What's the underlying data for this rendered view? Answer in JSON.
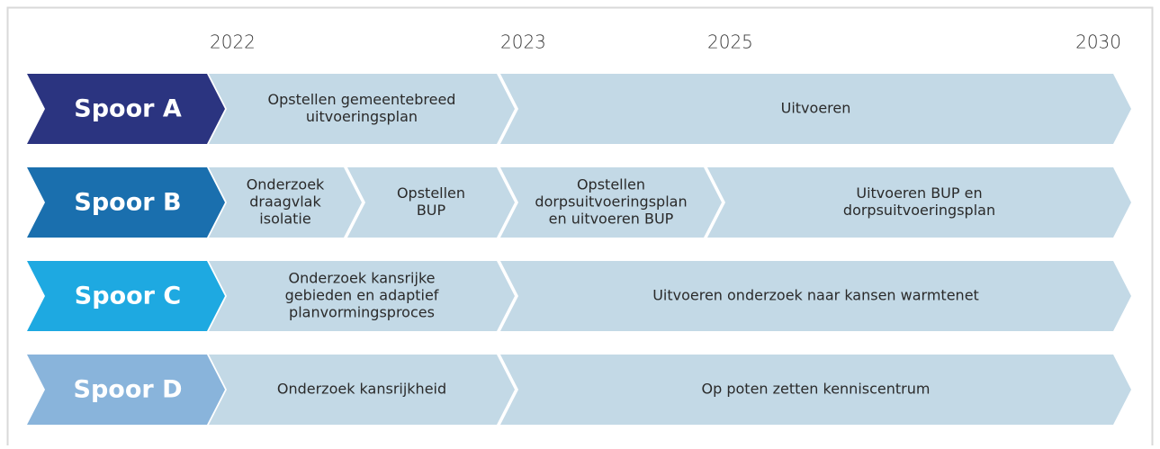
{
  "years": [
    "2022",
    "2023",
    "2025",
    "2030"
  ],
  "rows": [
    {
      "label": "Spoor A",
      "segments": [
        {
          "lines": [
            "Opstellen gemeentebreed",
            "uitvoeringsplan"
          ]
        },
        {
          "lines": [
            "Uitvoeren"
          ]
        }
      ]
    },
    {
      "label": "Spoor B",
      "segments": [
        {
          "lines": [
            "Onderzoek",
            "draagvlak",
            "isolatie"
          ]
        },
        {
          "lines": [
            "Opstellen",
            "BUP"
          ]
        },
        {
          "lines": [
            "Opstellen",
            "dorpsuitvoeringsplan",
            "en uitvoeren BUP"
          ]
        },
        {
          "lines": [
            "Uitvoeren BUP en",
            "dorpsuitvoeringsplan"
          ]
        }
      ]
    },
    {
      "label": "Spoor C",
      "segments": [
        {
          "lines": [
            "Onderzoek kansrijke",
            "gebieden en adaptief",
            "planvormingsproces"
          ]
        },
        {
          "lines": [
            "Uitvoeren onderzoek naar kansen warmtenet"
          ]
        }
      ]
    },
    {
      "label": "Spoor D",
      "segments": [
        {
          "lines": [
            "Onderzoek kansrijkheid"
          ]
        },
        {
          "lines": [
            "Op poten zetten kenniscentrum"
          ]
        }
      ]
    }
  ]
}
